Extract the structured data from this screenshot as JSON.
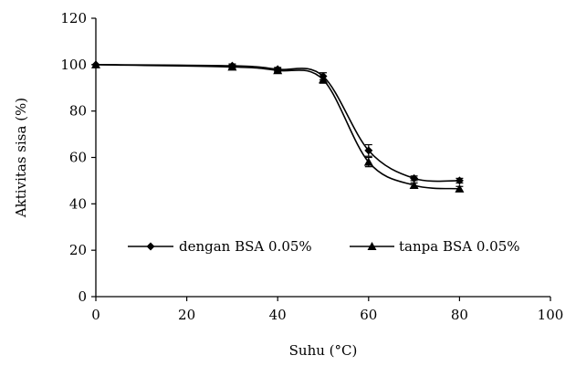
{
  "chart_data": {
    "type": "line",
    "xlabel": "Suhu (°C)",
    "ylabel": "Aktivitas sisa (%)",
    "xlim": [
      0,
      100
    ],
    "ylim": [
      0,
      120
    ],
    "x_ticks": [
      0,
      20,
      40,
      60,
      80,
      100
    ],
    "y_ticks": [
      0,
      20,
      40,
      60,
      80,
      100,
      120
    ],
    "grid": false,
    "legend_position": "center-left",
    "series": [
      {
        "name": "dengan BSA 0.05%",
        "marker": "diamond",
        "color": "#000000",
        "x": [
          0,
          30,
          40,
          50,
          60,
          70,
          80
        ],
        "y": [
          100,
          99.5,
          98,
          95,
          63,
          51,
          50
        ],
        "error": [
          0,
          0.8,
          0.8,
          1.5,
          2.5,
          1,
          1
        ]
      },
      {
        "name": "tanpa BSA 0.05%",
        "marker": "triangle",
        "color": "#000000",
        "x": [
          0,
          30,
          40,
          50,
          60,
          70,
          80
        ],
        "y": [
          100,
          99,
          97.5,
          93.5,
          58,
          48,
          46.5
        ],
        "error": [
          0,
          0.8,
          0.8,
          1.5,
          2,
          1,
          1
        ]
      }
    ]
  }
}
